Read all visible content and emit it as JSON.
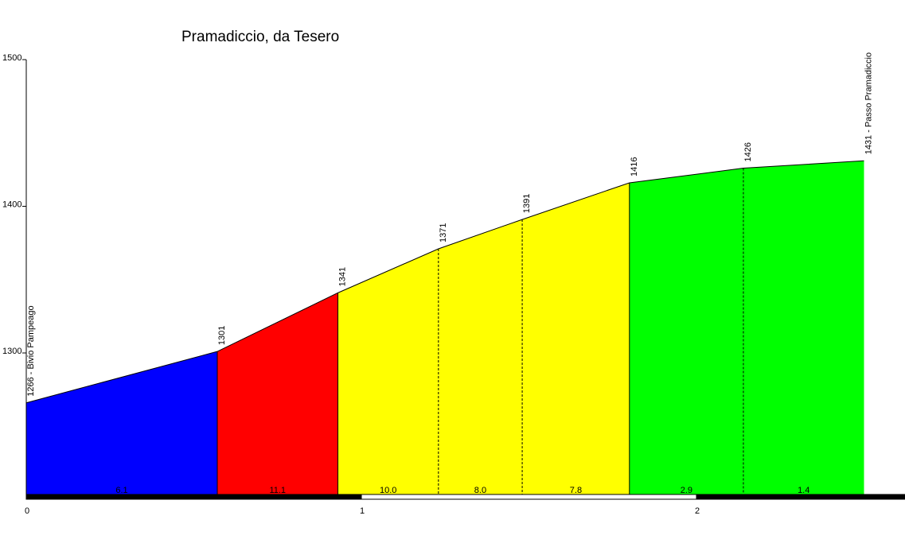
{
  "chart_data": {
    "type": "area",
    "title": "Pramadiccio, da Tesero",
    "xlabel": "",
    "ylabel": "",
    "xlim": [
      0,
      2.62
    ],
    "ylim": [
      1200,
      1500
    ],
    "x_ticks": [
      "0",
      "1",
      "2"
    ],
    "y_ticks": [
      "1300",
      "1400",
      "1500"
    ],
    "points": [
      {
        "km": 0.0,
        "alt": 1266,
        "label": "1266 - Bivio Pampeago"
      },
      {
        "km": 0.57,
        "alt": 1301,
        "label": "1301"
      },
      {
        "km": 0.93,
        "alt": 1341,
        "label": "1341"
      },
      {
        "km": 1.23,
        "alt": 1371,
        "label": "1371"
      },
      {
        "km": 1.48,
        "alt": 1391,
        "label": "1391"
      },
      {
        "km": 1.8,
        "alt": 1416,
        "label": "1416"
      },
      {
        "km": 2.14,
        "alt": 1426,
        "label": "1426"
      },
      {
        "km": 2.5,
        "alt": 1431,
        "label": "1431 - Passo Pramadiccio"
      }
    ],
    "segments": [
      {
        "grade": "6.1",
        "color": "#0000ff"
      },
      {
        "grade": "11.1",
        "color": "#ff0000"
      },
      {
        "grade": "10.0",
        "color": "#ffff00"
      },
      {
        "grade": "8.0",
        "color": "#ffff00"
      },
      {
        "grade": "7.8",
        "color": "#ffff00"
      },
      {
        "grade": "2.9",
        "color": "#00ff00"
      },
      {
        "grade": "1.4",
        "color": "#00ff00"
      }
    ]
  }
}
